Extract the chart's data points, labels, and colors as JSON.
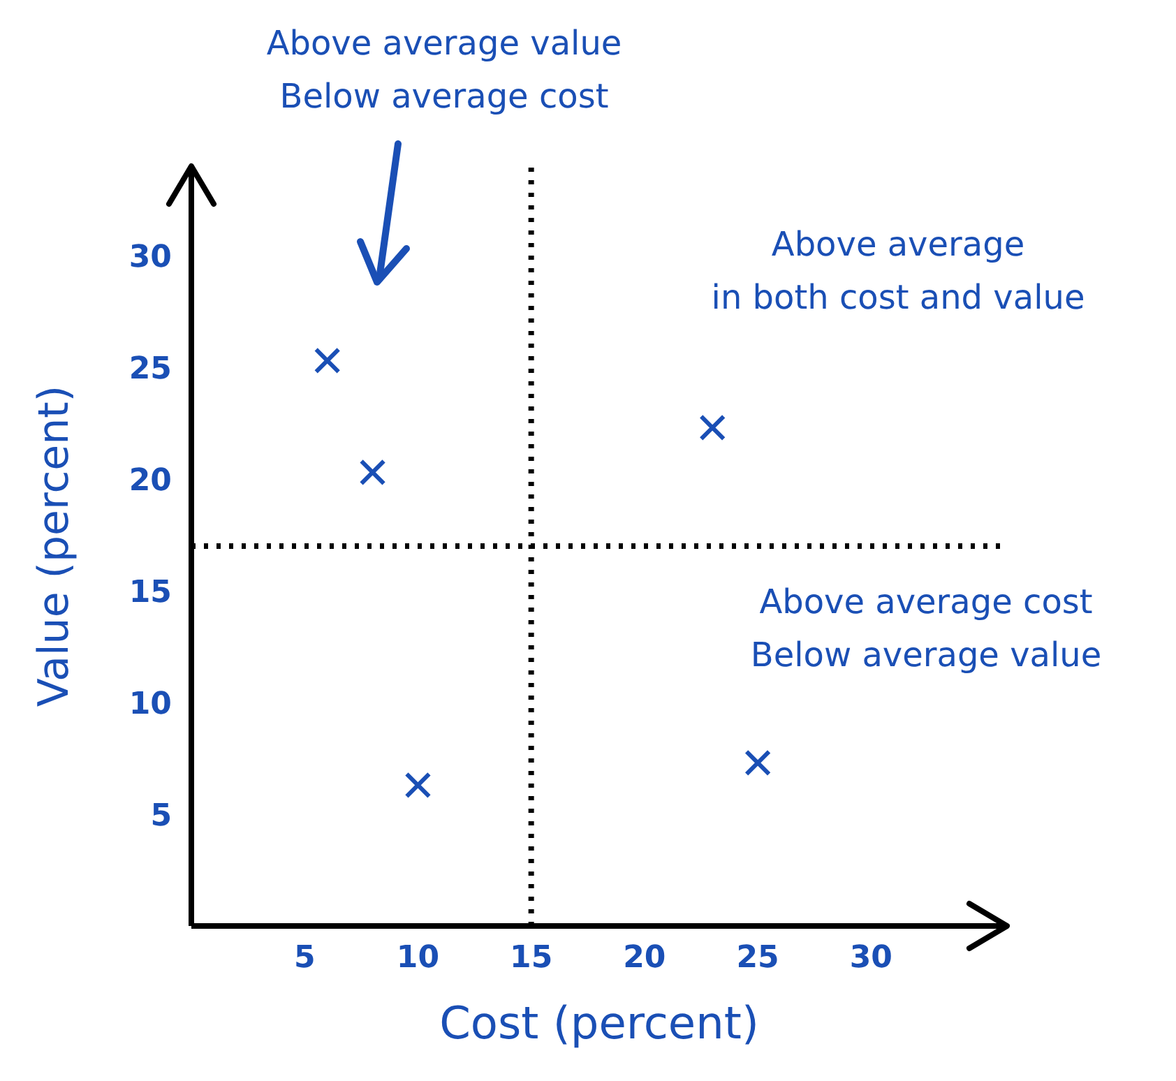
{
  "chart_data": {
    "type": "scatter",
    "xlabel": "Cost (percent)",
    "ylabel": "Value (percent)",
    "x": [
      6,
      8,
      10,
      23,
      25
    ],
    "values": [
      25.3,
      20.3,
      6.3,
      22.3,
      7.3
    ],
    "color": "#1a4fb5",
    "marker": "cross",
    "xlim": [
      0,
      36
    ],
    "ylim": [
      0,
      34
    ],
    "xticks": [
      5,
      10,
      15,
      20,
      25,
      30
    ],
    "yticks": [
      5,
      10,
      15,
      20,
      25,
      30
    ],
    "ref_lines": [
      {
        "axis": "x",
        "value": 15,
        "line_style": "dotted",
        "color": "#000000"
      },
      {
        "axis": "y",
        "value": 17,
        "line_style": "dotted",
        "color": "#000000"
      }
    ],
    "annotations": [
      "Above average value\nBelow average cost",
      "Above average\nin both cost and value",
      "Above average cost\nBelow average value"
    ]
  }
}
